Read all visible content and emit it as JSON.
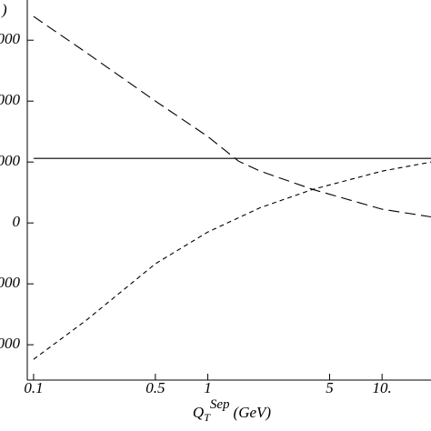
{
  "chart_data": {
    "type": "line",
    "y_label": ")",
    "x_label": {
      "main": "Q",
      "sub": "T",
      "sup": "Sep",
      "unit": "(GeV)"
    },
    "x_scale": "log",
    "xlim": [
      0.092,
      19.1
    ],
    "ylim": [
      -2580,
      3660
    ],
    "xticks": [
      0.1,
      0.5,
      1,
      5,
      {
        "value": 10,
        "label": "10."
      }
    ],
    "yticks": [
      {
        "value": 3000,
        "label": "000"
      },
      {
        "value": 2000,
        "label": "000"
      },
      {
        "value": 1000,
        "label": "000"
      },
      0,
      {
        "value": -1000,
        "label": "000"
      },
      {
        "value": -2000,
        "label": "000"
      }
    ],
    "series": [
      {
        "color": "#000",
        "dash": "none",
        "x": [
          0.1,
          19.1
        ],
        "values": [
          1060,
          1060
        ]
      },
      {
        "color": "#000",
        "dash": "12 6",
        "x": [
          0.1,
          0.2,
          0.5,
          1,
          1.5,
          2,
          4,
          10,
          19.1
        ],
        "values": [
          3390,
          2800,
          2000,
          1420,
          1015,
          850,
          550,
          225,
          100
        ]
      },
      {
        "color": "#000",
        "dash": "5 4",
        "x": [
          0.1,
          0.2,
          0.5,
          1,
          2,
          4,
          10,
          19.1
        ],
        "values": [
          -2240,
          -1600,
          -670,
          -150,
          250,
          550,
          850,
          1000
        ]
      }
    ]
  }
}
